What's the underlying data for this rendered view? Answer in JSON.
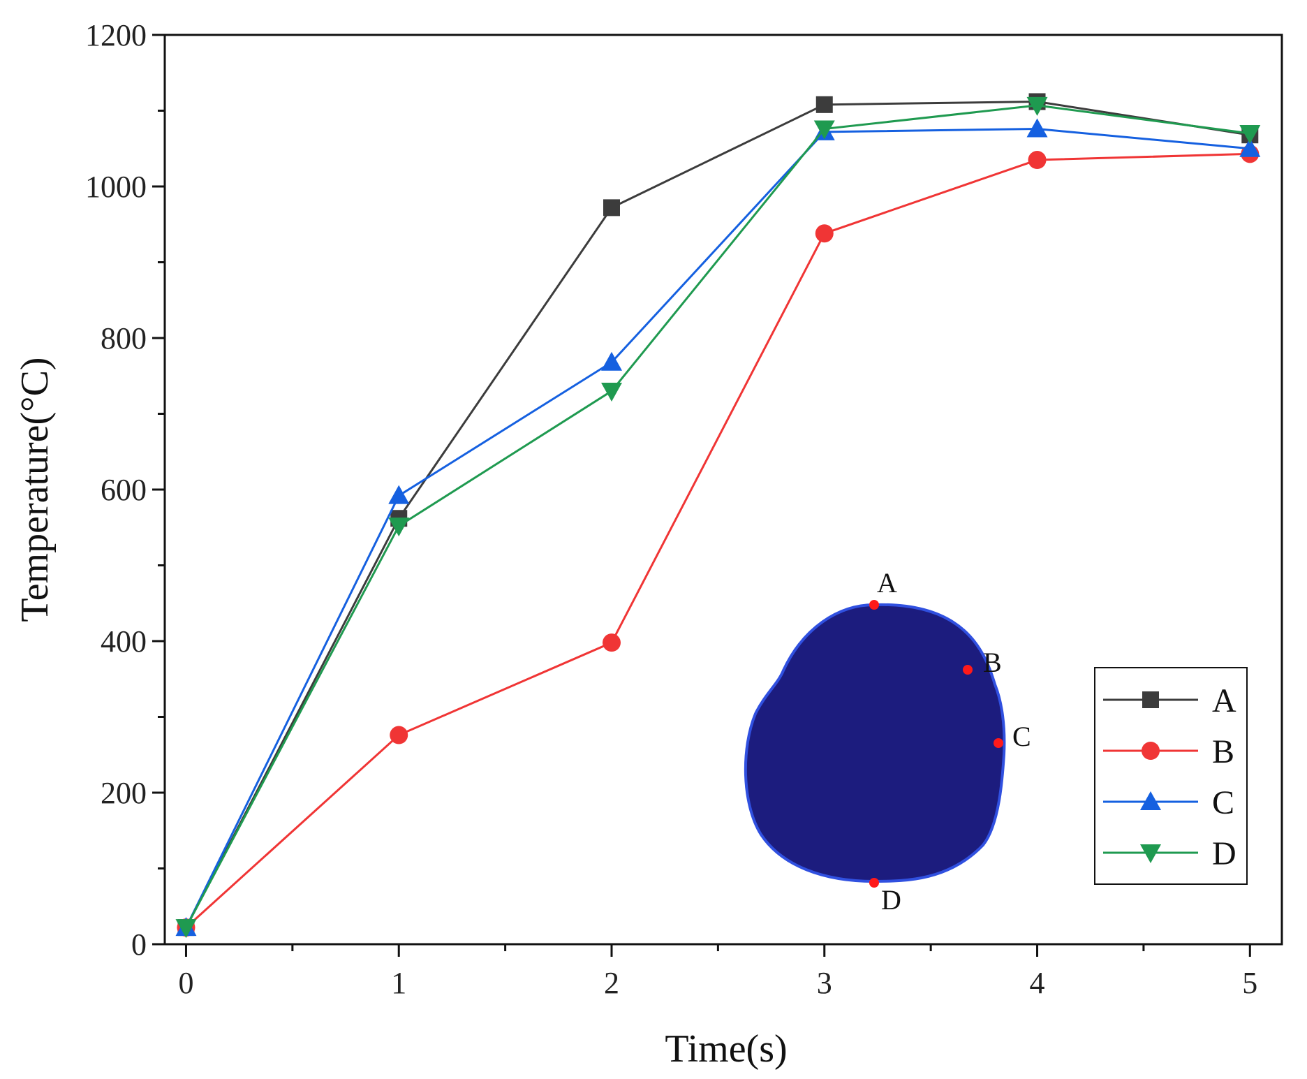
{
  "chart_data": {
    "type": "line",
    "xlabel": "Time(s)",
    "ylabel": "Temperature(°C)",
    "xlim": [
      -0.1,
      5.15
    ],
    "ylim": [
      0,
      1200
    ],
    "xticks": [
      0,
      1,
      2,
      3,
      4,
      5
    ],
    "xminor": [
      0.5,
      1.5,
      2.5,
      3.5,
      4.5
    ],
    "yticks": [
      0,
      200,
      400,
      600,
      800,
      1000,
      1200
    ],
    "yminor": [
      100,
      300,
      500,
      700,
      900,
      1100
    ],
    "legend_position": "right",
    "grid": false,
    "x": [
      0,
      1,
      2,
      3,
      4,
      5
    ],
    "series": [
      {
        "name": "A",
        "color": "#3c3c3c",
        "marker": "square",
        "values": [
          22,
          562,
          972,
          1108,
          1112,
          1068
        ]
      },
      {
        "name": "B",
        "color": "#f03535",
        "marker": "circle",
        "values": [
          22,
          276,
          398,
          938,
          1035,
          1043
        ]
      },
      {
        "name": "C",
        "color": "#1560e0",
        "marker": "triangle-up",
        "values": [
          22,
          592,
          768,
          1072,
          1076,
          1050
        ]
      },
      {
        "name": "D",
        "color": "#1f9a50",
        "marker": "triangle-down",
        "values": [
          22,
          552,
          730,
          1076,
          1107,
          1070
        ]
      }
    ]
  },
  "inset": {
    "fill_color": "#1c1c7e",
    "edge_color": "#3050e0",
    "point_color": "#ff1a1a",
    "point_labels": [
      "A",
      "B",
      "C",
      "D"
    ]
  }
}
